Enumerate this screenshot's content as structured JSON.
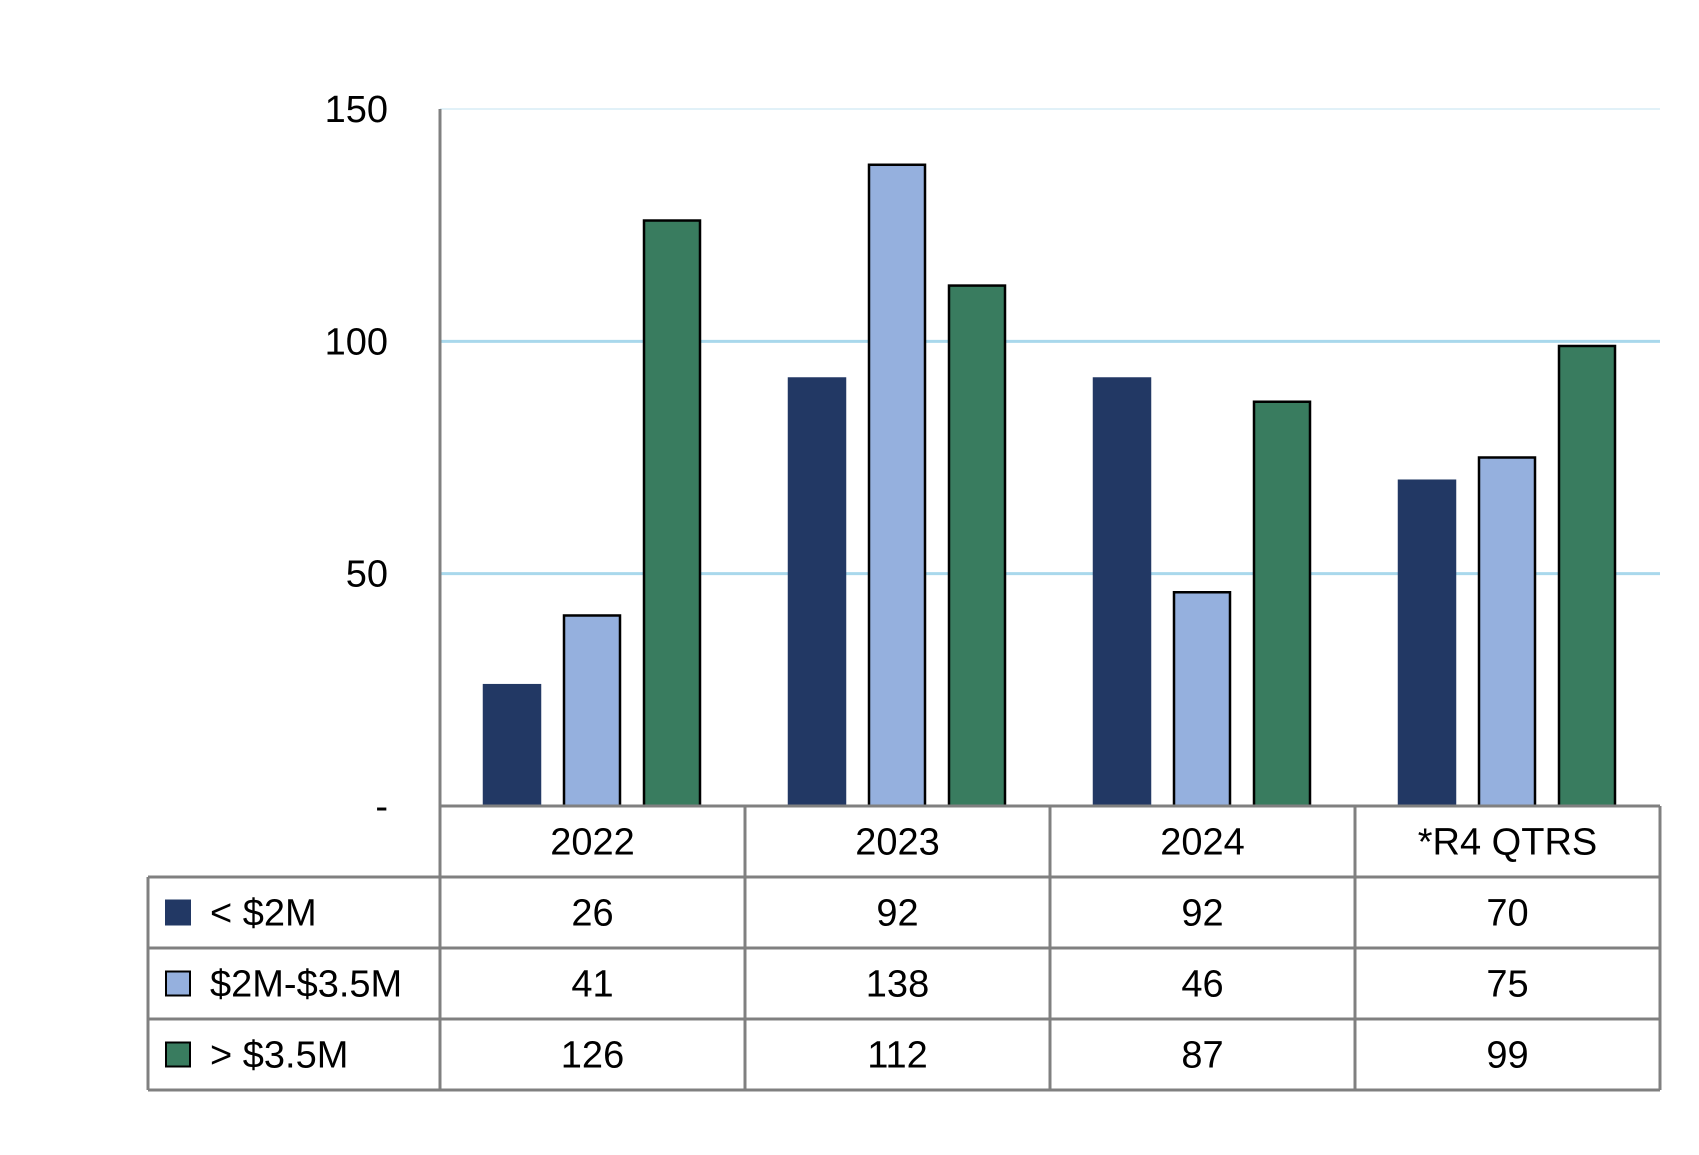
{
  "chart_data": {
    "type": "bar",
    "title": "",
    "xlabel": "",
    "ylabel": "",
    "ylim": [
      0,
      150
    ],
    "yticks": [
      {
        "value": 0,
        "label": "-"
      },
      {
        "value": 50,
        "label": "50"
      },
      {
        "value": 100,
        "label": "100"
      },
      {
        "value": 150,
        "label": "150"
      }
    ],
    "grid": true,
    "legend": "data-table",
    "categories": [
      "2022",
      "2023",
      "2024",
      "*R4 QTRS"
    ],
    "series": [
      {
        "name": "< $2M",
        "color": "#223864",
        "values": [
          26,
          92,
          92,
          70
        ]
      },
      {
        "name": "$2M-$3.5M",
        "color": "#95b0de",
        "values": [
          41,
          138,
          46,
          75
        ]
      },
      {
        "name": "> $3.5M",
        "color": "#397c5f",
        "values": [
          126,
          112,
          87,
          99
        ]
      }
    ],
    "colors": {
      "gridline": "#a9d8ec",
      "table_border": "#808080",
      "axis": "#808080"
    }
  }
}
